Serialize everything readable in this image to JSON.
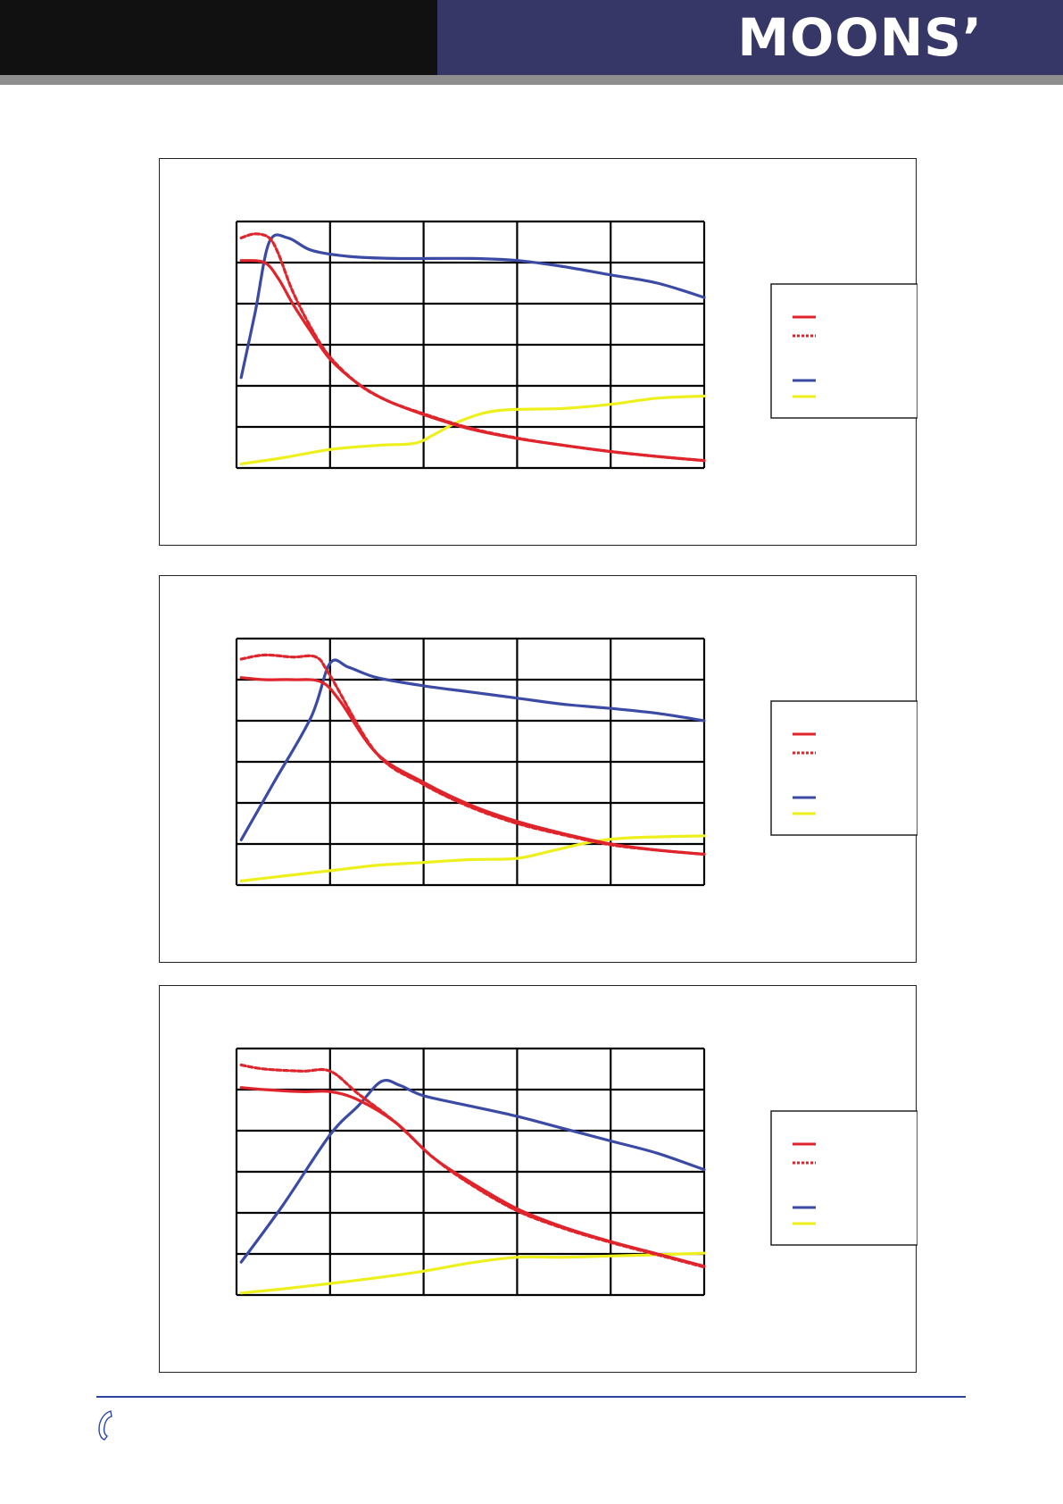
{
  "header": {
    "logo_text": "MOONS’",
    "colors": {
      "left": "#111111",
      "right": "#363766",
      "strip": "#8e8e8e"
    }
  },
  "footer": {
    "icon": "phone-icon",
    "line_color": "#2a46a0"
  },
  "colors": {
    "red": "#e0242b",
    "blue": "#3b4aa4",
    "yellow": "#eef01e",
    "grid": "#000000"
  },
  "chart_data": [
    {
      "type": "line",
      "grid": true,
      "x_divisions": 5,
      "y_divisions": 6,
      "xlim": [
        0,
        5
      ],
      "ylim": [
        0,
        6
      ],
      "legend_placement": "right",
      "series": [
        {
          "key": "red_solid",
          "style": "solid",
          "color": "#e0242b",
          "points": [
            [
              0.05,
              5.05
            ],
            [
              0.3,
              5.0
            ],
            [
              0.45,
              4.6
            ],
            [
              0.6,
              4.0
            ],
            [
              0.8,
              3.3
            ],
            [
              1.0,
              2.65
            ],
            [
              1.3,
              2.05
            ],
            [
              1.6,
              1.65
            ],
            [
              2.0,
              1.3
            ],
            [
              2.5,
              0.95
            ],
            [
              3.0,
              0.72
            ],
            [
              3.5,
              0.55
            ],
            [
              4.0,
              0.4
            ],
            [
              4.5,
              0.28
            ],
            [
              5.0,
              0.18
            ]
          ]
        },
        {
          "key": "red_dashed",
          "style": "dashed",
          "color": "#e0242b",
          "points": [
            [
              0.05,
              5.6
            ],
            [
              0.2,
              5.7
            ],
            [
              0.35,
              5.6
            ],
            [
              0.45,
              5.2
            ],
            [
              0.6,
              4.3
            ],
            [
              0.8,
              3.4
            ],
            [
              1.0,
              2.7
            ],
            [
              1.3,
              2.05
            ],
            [
              1.6,
              1.65
            ],
            [
              2.0,
              1.32
            ],
            [
              2.5,
              0.97
            ],
            [
              3.0,
              0.73
            ],
            [
              3.5,
              0.55
            ],
            [
              4.0,
              0.4
            ],
            [
              4.5,
              0.28
            ],
            [
              5.0,
              0.18
            ]
          ]
        },
        {
          "key": "blue",
          "style": "solid",
          "color": "#3b4aa4",
          "points": [
            [
              0.05,
              2.2
            ],
            [
              0.2,
              3.8
            ],
            [
              0.35,
              5.5
            ],
            [
              0.55,
              5.6
            ],
            [
              0.8,
              5.3
            ],
            [
              1.2,
              5.15
            ],
            [
              1.7,
              5.1
            ],
            [
              2.5,
              5.1
            ],
            [
              3.0,
              5.05
            ],
            [
              3.5,
              4.9
            ],
            [
              4.0,
              4.7
            ],
            [
              4.5,
              4.5
            ],
            [
              5.0,
              4.15
            ]
          ]
        },
        {
          "key": "yellow",
          "style": "solid",
          "color": "#eef01e",
          "points": [
            [
              0.05,
              0.1
            ],
            [
              0.5,
              0.25
            ],
            [
              1.0,
              0.45
            ],
            [
              1.5,
              0.55
            ],
            [
              1.9,
              0.6
            ],
            [
              2.1,
              0.8
            ],
            [
              2.4,
              1.15
            ],
            [
              2.8,
              1.4
            ],
            [
              3.5,
              1.45
            ],
            [
              4.0,
              1.55
            ],
            [
              4.5,
              1.7
            ],
            [
              5.0,
              1.75
            ]
          ]
        }
      ]
    },
    {
      "type": "line",
      "grid": true,
      "x_divisions": 5,
      "y_divisions": 6,
      "xlim": [
        0,
        5
      ],
      "ylim": [
        0,
        6
      ],
      "legend_placement": "right",
      "series": [
        {
          "key": "red_solid",
          "style": "solid",
          "color": "#e0242b",
          "points": [
            [
              0.05,
              5.05
            ],
            [
              0.3,
              5.0
            ],
            [
              0.6,
              5.0
            ],
            [
              0.9,
              4.95
            ],
            [
              1.1,
              4.5
            ],
            [
              1.5,
              3.2
            ],
            [
              2.0,
              2.5
            ],
            [
              2.5,
              1.95
            ],
            [
              3.0,
              1.55
            ],
            [
              3.5,
              1.25
            ],
            [
              4.0,
              1.0
            ],
            [
              4.5,
              0.85
            ],
            [
              5.0,
              0.75
            ]
          ]
        },
        {
          "key": "red_dashed",
          "style": "dashed",
          "color": "#e0242b",
          "points": [
            [
              0.05,
              5.5
            ],
            [
              0.3,
              5.6
            ],
            [
              0.6,
              5.55
            ],
            [
              0.85,
              5.55
            ],
            [
              1.0,
              5.1
            ],
            [
              1.5,
              3.2
            ],
            [
              2.0,
              2.45
            ],
            [
              2.5,
              1.9
            ],
            [
              3.0,
              1.5
            ],
            [
              3.5,
              1.22
            ],
            [
              4.0,
              0.98
            ],
            [
              4.5,
              0.85
            ],
            [
              5.0,
              0.75
            ]
          ]
        },
        {
          "key": "blue",
          "style": "solid",
          "color": "#3b4aa4",
          "points": [
            [
              0.05,
              1.1
            ],
            [
              0.4,
              2.5
            ],
            [
              0.8,
              4.1
            ],
            [
              1.0,
              5.4
            ],
            [
              1.2,
              5.3
            ],
            [
              1.5,
              5.05
            ],
            [
              2.0,
              4.85
            ],
            [
              2.5,
              4.7
            ],
            [
              3.0,
              4.55
            ],
            [
              3.5,
              4.4
            ],
            [
              4.0,
              4.3
            ],
            [
              4.5,
              4.18
            ],
            [
              5.0,
              4.0
            ]
          ]
        },
        {
          "key": "yellow",
          "style": "solid",
          "color": "#eef01e",
          "points": [
            [
              0.05,
              0.1
            ],
            [
              0.5,
              0.22
            ],
            [
              1.0,
              0.35
            ],
            [
              1.5,
              0.48
            ],
            [
              2.0,
              0.55
            ],
            [
              2.5,
              0.62
            ],
            [
              3.0,
              0.65
            ],
            [
              3.4,
              0.85
            ],
            [
              3.8,
              1.05
            ],
            [
              4.2,
              1.15
            ],
            [
              5.0,
              1.2
            ]
          ]
        }
      ]
    },
    {
      "type": "line",
      "grid": true,
      "x_divisions": 5,
      "y_divisions": 6,
      "xlim": [
        0,
        5
      ],
      "ylim": [
        0,
        6
      ],
      "legend_placement": "right",
      "series": [
        {
          "key": "red_solid",
          "style": "solid",
          "color": "#e0242b",
          "points": [
            [
              0.05,
              5.05
            ],
            [
              0.3,
              5.0
            ],
            [
              0.7,
              4.95
            ],
            [
              1.0,
              4.95
            ],
            [
              1.3,
              4.75
            ],
            [
              1.7,
              4.2
            ],
            [
              2.1,
              3.35
            ],
            [
              2.5,
              2.75
            ],
            [
              3.0,
              2.1
            ],
            [
              3.5,
              1.65
            ],
            [
              4.0,
              1.3
            ],
            [
              4.5,
              1.0
            ],
            [
              5.0,
              0.7
            ]
          ]
        },
        {
          "key": "red_dashed",
          "style": "dashed",
          "color": "#e0242b",
          "points": [
            [
              0.05,
              5.6
            ],
            [
              0.3,
              5.5
            ],
            [
              0.7,
              5.45
            ],
            [
              1.0,
              5.45
            ],
            [
              1.3,
              4.9
            ],
            [
              1.7,
              4.2
            ],
            [
              2.1,
              3.35
            ],
            [
              2.5,
              2.7
            ],
            [
              3.0,
              2.05
            ],
            [
              3.5,
              1.62
            ],
            [
              4.0,
              1.28
            ],
            [
              4.5,
              0.98
            ],
            [
              5.0,
              0.68
            ]
          ]
        },
        {
          "key": "blue",
          "style": "solid",
          "color": "#3b4aa4",
          "points": [
            [
              0.05,
              0.8
            ],
            [
              0.5,
              2.2
            ],
            [
              1.0,
              3.9
            ],
            [
              1.3,
              4.6
            ],
            [
              1.55,
              5.2
            ],
            [
              1.75,
              5.1
            ],
            [
              2.0,
              4.85
            ],
            [
              2.5,
              4.6
            ],
            [
              3.0,
              4.35
            ],
            [
              3.5,
              4.05
            ],
            [
              4.0,
              3.75
            ],
            [
              4.5,
              3.45
            ],
            [
              5.0,
              3.05
            ]
          ]
        },
        {
          "key": "yellow",
          "style": "solid",
          "color": "#eef01e",
          "points": [
            [
              0.05,
              0.05
            ],
            [
              0.5,
              0.15
            ],
            [
              1.0,
              0.28
            ],
            [
              1.5,
              0.42
            ],
            [
              2.0,
              0.58
            ],
            [
              2.5,
              0.78
            ],
            [
              3.0,
              0.92
            ],
            [
              3.5,
              0.92
            ],
            [
              4.0,
              0.95
            ],
            [
              4.5,
              0.98
            ],
            [
              5.0,
              1.02
            ]
          ]
        }
      ]
    }
  ],
  "legend_entries": [
    {
      "key": "red_solid",
      "style": "solid",
      "color": "#e0242b"
    },
    {
      "key": "red_dashed",
      "style": "dashed",
      "color": "#e0242b"
    },
    {
      "key": "blue",
      "style": "solid",
      "color": "#3b4aa4"
    },
    {
      "key": "yellow",
      "style": "solid",
      "color": "#eef01e"
    }
  ]
}
